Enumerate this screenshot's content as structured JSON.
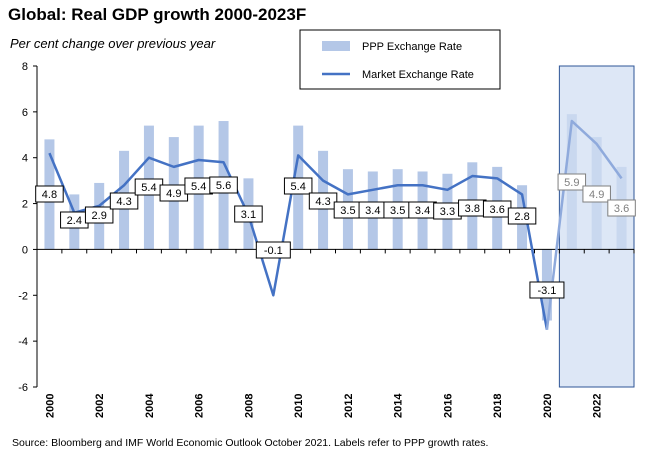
{
  "title": "Global: Real GDP growth 2000-2023F",
  "subtitle": "Per cent change over previous year",
  "source": "Source: Bloomberg and IMF World Economic Outlook October 2021.  Labels refer to PPP growth rates.",
  "chart_data": {
    "type": "bar",
    "x": [
      2000,
      2001,
      2002,
      2003,
      2004,
      2005,
      2006,
      2007,
      2008,
      2009,
      2010,
      2011,
      2012,
      2013,
      2014,
      2015,
      2016,
      2017,
      2018,
      2019,
      2020,
      2021,
      2022,
      2023
    ],
    "x_tick_labels": [
      "2000",
      "2002",
      "2004",
      "2006",
      "2008",
      "2010",
      "2012",
      "2014",
      "2016",
      "2018",
      "2020",
      "2022"
    ],
    "ylim": [
      -6,
      8
    ],
    "y_ticks": [
      8,
      6,
      4,
      2,
      0,
      -2,
      -4,
      -6
    ],
    "forecast_start": 2021,
    "series": [
      {
        "name": "PPP Exchange Rate",
        "type": "bar",
        "color": "#b4c7e7",
        "forecast_color": "#c9d8ef",
        "values": [
          4.8,
          2.4,
          2.9,
          4.3,
          5.4,
          4.9,
          5.4,
          5.6,
          3.1,
          -0.1,
          5.4,
          4.3,
          3.5,
          3.4,
          3.5,
          3.4,
          3.3,
          3.8,
          3.6,
          2.8,
          -3.1,
          5.9,
          4.9,
          3.6
        ],
        "labels": [
          "4.8",
          "2.4",
          "2.9",
          "4.3",
          "5.4",
          "4.9",
          "5.4",
          "5.6",
          "3.1",
          "-0.1",
          "5.4",
          "4.3",
          "3.5",
          "3.4",
          "3.5",
          "3.4",
          "3.3",
          "3.8",
          "3.6",
          "2.8",
          "-3.1",
          "5.9",
          "4.9",
          "3.6"
        ]
      },
      {
        "name": "Market Exchange Rate",
        "type": "line",
        "color": "#4472c4",
        "forecast_color": "#8faadc",
        "values": [
          4.2,
          1.6,
          1.9,
          2.8,
          4.0,
          3.6,
          3.9,
          3.8,
          1.5,
          -2.0,
          4.1,
          3.0,
          2.4,
          2.6,
          2.8,
          2.8,
          2.6,
          3.2,
          3.1,
          2.4,
          -3.5,
          5.6,
          4.6,
          3.1
        ]
      }
    ],
    "legend": "top-right",
    "grid": false
  }
}
